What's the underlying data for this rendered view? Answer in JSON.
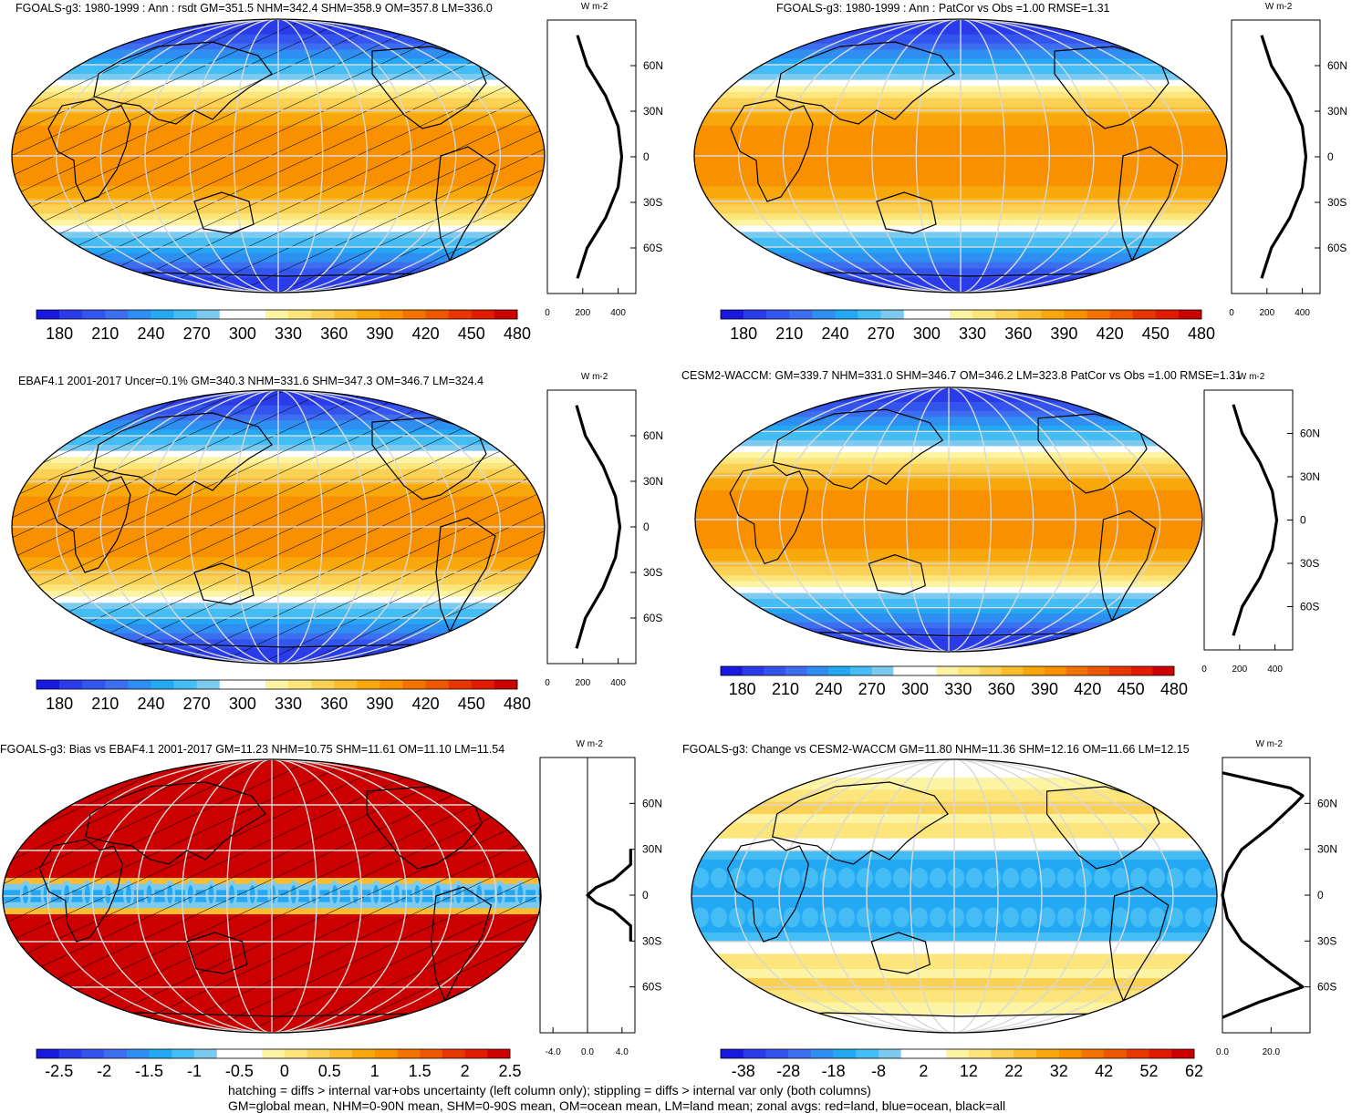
{
  "colors": {
    "scale": [
      "#1818e0",
      "#2a3cea",
      "#3355ee",
      "#3d6ef0",
      "#2f8ef2",
      "#23a9f4",
      "#44bdf5",
      "#7ccaf0",
      "#ffffff",
      "#ffffff",
      "#fdf4a3",
      "#fce57a",
      "#fbd155",
      "#fbbd2f",
      "#f9a80c",
      "#f89000",
      "#f47300",
      "#ee5600",
      "#e83600",
      "#e11a00",
      "#cc0000"
    ],
    "black": "#000000",
    "land": "#e00000"
  },
  "chart_data": [
    {
      "id": "p1",
      "type": "heatmap",
      "title": "FGOALS-g3: 1980-1999 : Ann : rsdt GM=351.5 NHM=342.4 SHM=358.9 OM=357.8 LM=336.0",
      "lat_labels": [
        "60N",
        "30N",
        "0",
        "30S",
        "60S"
      ],
      "lat_values": [
        60,
        30,
        0,
        -30,
        -60
      ],
      "zonal_unit": "W m-2",
      "zonal_ticks": [
        "0",
        "200",
        "400"
      ],
      "zonal_tick_values": [
        0,
        200,
        400
      ],
      "zonal_lat": [
        -80,
        -60,
        -40,
        -20,
        0,
        20,
        40,
        60,
        80
      ],
      "zonal_values": [
        170,
        225,
        330,
        400,
        420,
        400,
        330,
        225,
        170
      ],
      "colorbar_labels": [
        "180",
        "210",
        "240",
        "270",
        "300",
        "330",
        "360",
        "390",
        "420",
        "450",
        "480"
      ],
      "hatched": true
    },
    {
      "id": "p2",
      "type": "heatmap",
      "title": "FGOALS-g3: 1980-1999 : Ann : PatCor vs Obs =1.00 RMSE=1.31",
      "lat_labels": [
        "60N",
        "30N",
        "0",
        "30S",
        "60S"
      ],
      "lat_values": [
        60,
        30,
        0,
        -30,
        -60
      ],
      "zonal_unit": "W m-2",
      "zonal_ticks": [
        "0",
        "200",
        "400"
      ],
      "zonal_tick_values": [
        0,
        200,
        400
      ],
      "zonal_lat": [
        -80,
        -60,
        -40,
        -20,
        0,
        20,
        40,
        60,
        80
      ],
      "zonal_values": [
        170,
        225,
        330,
        400,
        420,
        400,
        330,
        225,
        170
      ],
      "colorbar_labels": [
        "180",
        "210",
        "240",
        "270",
        "300",
        "330",
        "360",
        "390",
        "420",
        "450",
        "480"
      ],
      "hatched": false
    },
    {
      "id": "p3",
      "type": "heatmap",
      "title": "EBAF4.1 2001-2017 Uncer=0.1% GM=340.3 NHM=331.6 SHM=347.3 OM=346.7 LM=324.4",
      "lat_labels": [
        "60N",
        "30N",
        "0",
        "30S",
        "60S"
      ],
      "lat_values": [
        60,
        30,
        0,
        -30,
        -60
      ],
      "zonal_unit": "W m-2",
      "zonal_ticks": [
        "0",
        "200",
        "400"
      ],
      "zonal_tick_values": [
        0,
        200,
        400
      ],
      "zonal_lat": [
        -80,
        -60,
        -40,
        -20,
        0,
        20,
        40,
        60,
        80
      ],
      "zonal_values": [
        165,
        215,
        315,
        385,
        410,
        385,
        315,
        215,
        165
      ],
      "colorbar_labels": [
        "180",
        "210",
        "240",
        "270",
        "300",
        "330",
        "360",
        "390",
        "420",
        "450",
        "480"
      ],
      "hatched": true
    },
    {
      "id": "p4",
      "type": "heatmap",
      "title": "CESM2-WACCM: GM=339.7 NHM=331.0 SHM=346.7 OM=346.2 LM=323.8 PatCor vs Obs =1.00 RMSE=1.31",
      "lat_labels": [
        "60N",
        "30N",
        "0",
        "30S",
        "60S"
      ],
      "lat_values": [
        60,
        30,
        0,
        -30,
        -60
      ],
      "zonal_unit": "W m-2",
      "zonal_ticks": [
        "0",
        "200",
        "400"
      ],
      "zonal_tick_values": [
        0,
        200,
        400
      ],
      "zonal_lat": [
        -80,
        -60,
        -40,
        -20,
        0,
        20,
        40,
        60,
        80
      ],
      "zonal_values": [
        165,
        215,
        315,
        385,
        410,
        385,
        315,
        215,
        165
      ],
      "colorbar_labels": [
        "180",
        "210",
        "240",
        "270",
        "300",
        "330",
        "360",
        "390",
        "420",
        "450",
        "480"
      ],
      "hatched": false
    },
    {
      "id": "p5",
      "type": "heatmap",
      "title": "FGOALS-g3: Bias vs EBAF4.1 2001-2017 GM=11.23 NHM=10.75 SHM=11.61 OM=11.10 LM=11.54",
      "lat_labels": [
        "60N",
        "30N",
        "0",
        "30S",
        "60S"
      ],
      "lat_values": [
        60,
        30,
        0,
        -30,
        -60
      ],
      "zonal_unit": "W m-2",
      "zonal_ticks": [
        "-4.0",
        "0.0",
        "4.0"
      ],
      "zonal_tick_values": [
        -4,
        0,
        4
      ],
      "zonal_lat": [
        -30,
        -20,
        -10,
        -5,
        0,
        5,
        10,
        20,
        30
      ],
      "zonal_values": [
        5,
        5,
        3,
        1,
        0,
        1,
        3,
        5,
        5
      ],
      "colorbar_labels": [
        "-2.5",
        "-2",
        "-1.5",
        "-1",
        "-0.5",
        "0",
        "0.5",
        "1",
        "1.5",
        "2",
        "2.5"
      ],
      "hatched": true
    },
    {
      "id": "p6",
      "type": "heatmap",
      "title": "FGOALS-g3: Change vs CESM2-WACCM GM=11.80 NHM=11.36 SHM=12.16 OM=11.66 LM=12.15",
      "lat_labels": [
        "60N",
        "30N",
        "0",
        "30S",
        "60S"
      ],
      "lat_values": [
        60,
        30,
        0,
        -30,
        -60
      ],
      "zonal_unit": "W m-2",
      "zonal_ticks": [
        "0.0",
        "20.0"
      ],
      "zonal_tick_values": [
        0,
        20
      ],
      "zonal_lat": [
        -80,
        -70,
        -60,
        -45,
        -30,
        -15,
        0,
        15,
        30,
        45,
        60,
        65,
        70,
        80
      ],
      "zonal_values": [
        0,
        15,
        33,
        20,
        8,
        2,
        0,
        2,
        8,
        20,
        30,
        33,
        28,
        0
      ],
      "colorbar_labels": [
        "-38",
        "-28",
        "-18",
        "-8",
        "2",
        "12",
        "22",
        "32",
        "42",
        "52",
        "62"
      ],
      "hatched": false
    }
  ],
  "footer": {
    "line1": "hatching = diffs > internal var+obs uncertainty (left column only); stippling = diffs > internal var only (both columns)",
    "line2": "GM=global mean, NHM=0-90N mean, SHM=0-90S mean, OM=ocean mean, LM=land mean; zonal avgs: red=land, blue=ocean, black=all"
  }
}
